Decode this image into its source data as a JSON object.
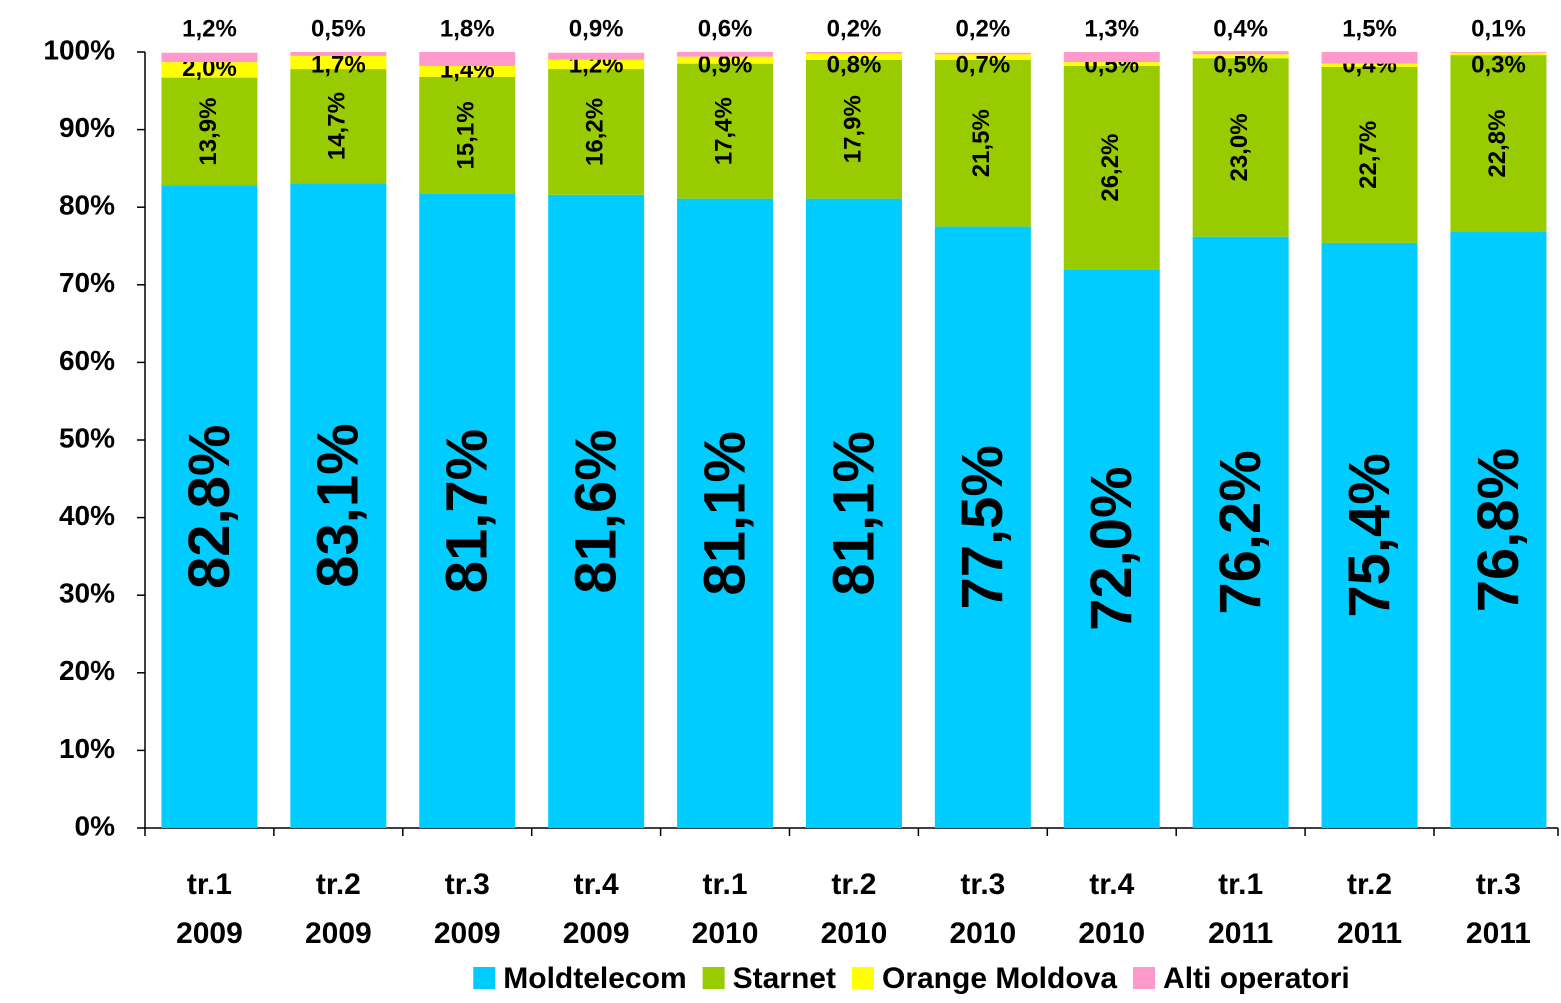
{
  "chart_data": {
    "type": "stacked_bar",
    "categories": [
      "tr.1 2009",
      "tr.2 2009",
      "tr.3 2009",
      "tr.4 2009",
      "tr.1 2010",
      "tr.2 2010",
      "tr.3 2010",
      "tr.4 2010",
      "tr.1 2011",
      "tr.2 2011",
      "tr.3 2011"
    ],
    "series": [
      {
        "name": "Moldtelecom",
        "color": "#00ccff",
        "values": [
          82.8,
          83.1,
          81.7,
          81.6,
          81.1,
          81.1,
          77.5,
          72.0,
          76.2,
          75.4,
          76.8
        ],
        "value_labels": [
          "82,8%",
          "83,1%",
          "81,7%",
          "81,6%",
          "81,1%",
          "81,1%",
          "77,5%",
          "72,0%",
          "76,2%",
          "75,4%",
          "76,8%"
        ]
      },
      {
        "name": "Starnet",
        "color": "#99cc00",
        "values": [
          13.9,
          14.7,
          15.1,
          16.2,
          17.4,
          17.9,
          21.5,
          26.2,
          23.0,
          22.7,
          22.8
        ],
        "value_labels": [
          "13,9%",
          "14,7%",
          "15,1%",
          "16,2%",
          "17,4%",
          "17,9%",
          "21,5%",
          "26,2%",
          "23,0%",
          "22,7%",
          "22,8%"
        ]
      },
      {
        "name": "Orange Moldova",
        "color": "#ffff00",
        "values": [
          2.0,
          1.7,
          1.4,
          1.2,
          0.9,
          0.8,
          0.7,
          0.5,
          0.5,
          0.4,
          0.3
        ],
        "value_labels": [
          "2,0%",
          "1,7%",
          "1,4%",
          "1,2%",
          "0,9%",
          "0,8%",
          "0,7%",
          "0,5%",
          "0,5%",
          "0,4%",
          "0,3%"
        ]
      },
      {
        "name": "Alti operatori",
        "color": "#ff99cc",
        "values": [
          1.2,
          0.5,
          1.8,
          0.9,
          0.6,
          0.2,
          0.2,
          1.3,
          0.4,
          1.5,
          0.1
        ],
        "value_labels": [
          "1,2%",
          "0,5%",
          "1,8%",
          "0,9%",
          "0,6%",
          "0,2%",
          "0,2%",
          "1,3%",
          "0,4%",
          "1,5%",
          "0,1%"
        ]
      }
    ],
    "ylim": [
      0,
      100
    ],
    "yticks": [
      {
        "value": 0,
        "label": "0%"
      },
      {
        "value": 10,
        "label": "10%"
      },
      {
        "value": 20,
        "label": "20%"
      },
      {
        "value": 30,
        "label": "30%"
      },
      {
        "value": 40,
        "label": "40%"
      },
      {
        "value": 50,
        "label": "50%"
      },
      {
        "value": 60,
        "label": "60%"
      },
      {
        "value": 70,
        "label": "70%"
      },
      {
        "value": 80,
        "label": "80%"
      },
      {
        "value": 90,
        "label": "90%"
      },
      {
        "value": 100,
        "label": "100%"
      }
    ],
    "grid": false,
    "legend": "bottom"
  }
}
